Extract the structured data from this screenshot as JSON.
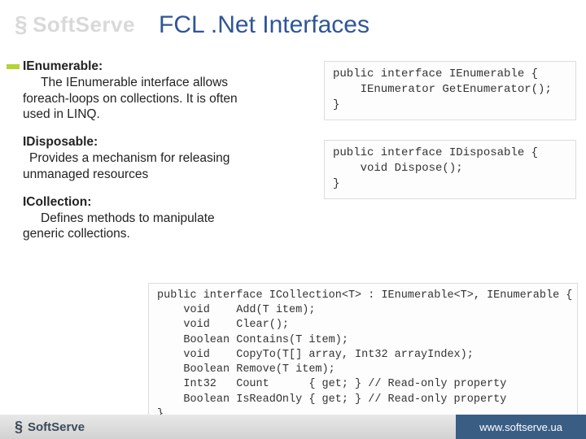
{
  "watermark": {
    "brand": "SoftServe"
  },
  "title": "FCL .Net Interfaces",
  "sections": {
    "ienumerable": {
      "term": "IEnumerable:",
      "desc_line1": "The IEnumerable interface allows",
      "desc_line2": "foreach-loops on collections. It is often",
      "desc_line3": "used in LINQ."
    },
    "idisposable": {
      "term": "IDisposable:",
      "desc_line1": "Provides a mechanism for releasing",
      "desc_line2": "unmanaged resources"
    },
    "icollection": {
      "term": "ICollection:",
      "desc_line1": "Defines methods to manipulate",
      "desc_line2": "generic collections."
    }
  },
  "code": {
    "ienumerable": "public interface IEnumerable {\n    IEnumerator GetEnumerator();\n}",
    "idisposable": "public interface IDisposable {\n    void Dispose();\n}",
    "icollection": "public interface ICollection<T> : IEnumerable<T>, IEnumerable {\n    void    Add(T item);\n    void    Clear();\n    Boolean Contains(T item);\n    void    CopyTo(T[] array, Int32 arrayIndex);\n    Boolean Remove(T item);\n    Int32   Count      { get; } // Read-only property\n    Boolean IsReadOnly { get; } // Read-only property\n}"
  },
  "footer": {
    "brand": "SoftServe",
    "url": "www.softserve.ua"
  },
  "colors": {
    "title": "#2f5597",
    "accent": "#b4d334",
    "footer_right_bg": "#3a5d84",
    "watermark": "#d9d9d9"
  }
}
